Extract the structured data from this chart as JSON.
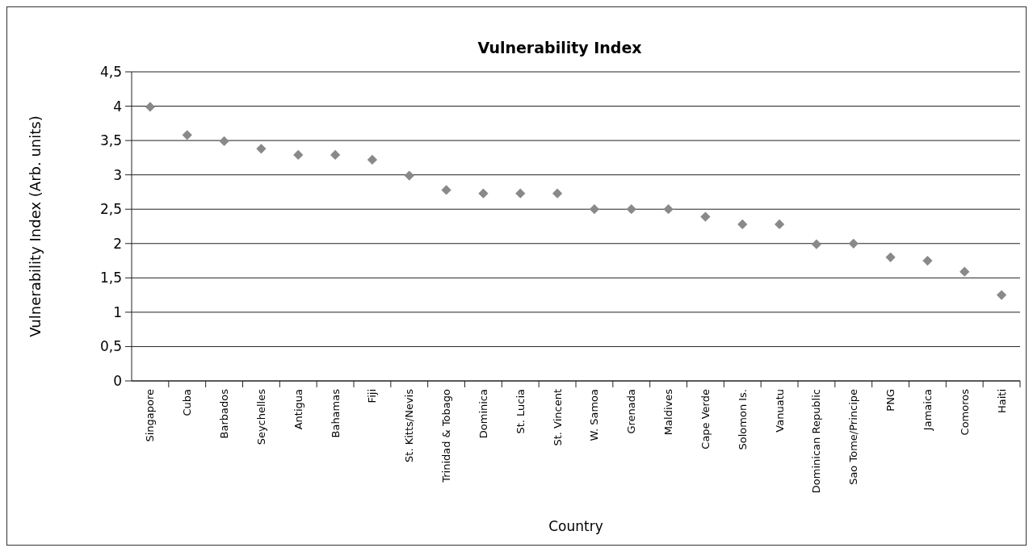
{
  "chart_data": {
    "type": "scatter",
    "title": "Vulnerability Index",
    "xlabel": "Country",
    "ylabel": "Vulnerability Index (Arb. units)",
    "categories": [
      "Singapore",
      "Cuba",
      "Barbados",
      "Seychelles",
      "Antigua",
      "Bahamas",
      "Fiji",
      "St. Kitts/Nevis",
      "Trinidad & Tobago",
      "Dominica",
      "St. Lucia",
      "St. Vincent",
      "W. Samoa",
      "Grenada",
      "Maldives",
      "Cape Verde",
      "Solomon Is.",
      "Vanuatu",
      "Dominican Republic",
      "Sao Tome/Principe",
      "PNG",
      "Jamaica",
      "Comoros",
      "Haiti"
    ],
    "series": [
      {
        "color": "#88898c",
        "values": [
          3.99,
          3.58,
          3.49,
          3.38,
          3.29,
          3.29,
          3.22,
          2.99,
          2.78,
          2.73,
          2.73,
          2.73,
          2.5,
          2.5,
          2.5,
          2.39,
          2.28,
          2.28,
          1.99,
          2.0,
          1.8,
          1.75,
          1.59,
          1.25
        ]
      }
    ],
    "ylim": [
      0,
      4.5
    ],
    "yticks": [
      {
        "value": 0,
        "label": "0"
      },
      {
        "value": 0.5,
        "label": "0,5"
      },
      {
        "value": 1,
        "label": "1"
      },
      {
        "value": 1.5,
        "label": "1,5"
      },
      {
        "value": 2,
        "label": "2"
      },
      {
        "value": 2.5,
        "label": "2,5"
      },
      {
        "value": 3,
        "label": "3"
      },
      {
        "value": 3.5,
        "label": "3,5"
      },
      {
        "value": 4,
        "label": "4"
      },
      {
        "value": 4.5,
        "label": "4,5"
      }
    ],
    "grid": "y",
    "marker": "diamond"
  }
}
